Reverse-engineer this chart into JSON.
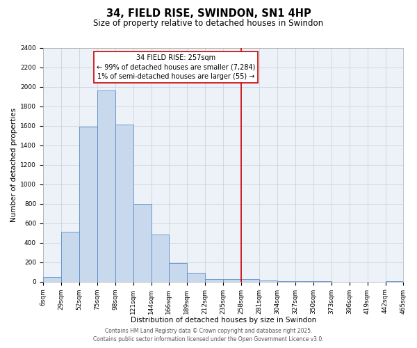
{
  "title": "34, FIELD RISE, SWINDON, SN1 4HP",
  "subtitle": "Size of property relative to detached houses in Swindon",
  "xlabel": "Distribution of detached houses by size in Swindon",
  "ylabel": "Number of detached properties",
  "bar_color": "#c8d9ee",
  "bar_edge_color": "#5b8fc9",
  "bg_color": "#edf1f8",
  "grid_color": "#c8cdd8",
  "bin_edges": [
    6,
    29,
    52,
    75,
    98,
    121,
    144,
    166,
    189,
    212,
    235,
    258,
    281,
    304,
    327,
    350,
    373,
    396,
    419,
    442,
    465
  ],
  "bin_counts": [
    50,
    510,
    1590,
    1960,
    1610,
    800,
    480,
    190,
    90,
    30,
    25,
    30,
    10,
    5,
    2,
    2,
    1,
    1,
    0,
    5
  ],
  "vline_x": 258,
  "vline_color": "#cc0000",
  "annotation_title": "34 FIELD RISE: 257sqm",
  "annotation_line1": "← 99% of detached houses are smaller (7,284)",
  "annotation_line2": "1% of semi-detached houses are larger (55) →",
  "annotation_box_edge": "#cc0000",
  "annotation_bg": "#ffffff",
  "ylim": [
    0,
    2400
  ],
  "yticks": [
    0,
    200,
    400,
    600,
    800,
    1000,
    1200,
    1400,
    1600,
    1800,
    2000,
    2200,
    2400
  ],
  "footer1": "Contains HM Land Registry data © Crown copyright and database right 2025.",
  "footer2": "Contains public sector information licensed under the Open Government Licence v3.0.",
  "title_fontsize": 10.5,
  "subtitle_fontsize": 8.5,
  "axis_label_fontsize": 7.5,
  "tick_fontsize": 6.5,
  "annotation_fontsize": 7.0,
  "footer_fontsize": 5.5
}
